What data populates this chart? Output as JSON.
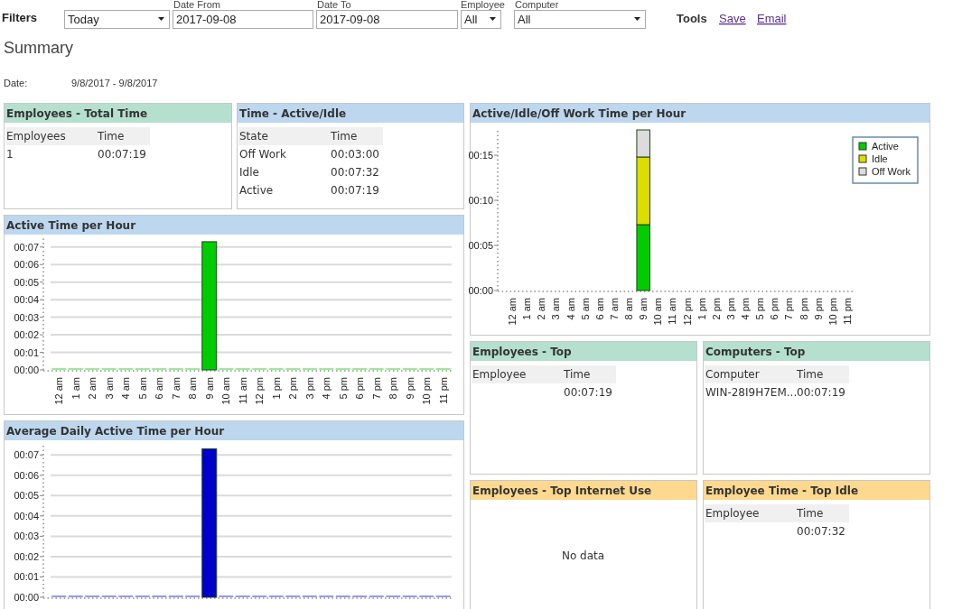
{
  "chart_data": [
    {
      "type": "other",
      "annotations": [
        "Date From",
        "Date To",
        "Employee",
        "Computer",
        "Filters",
        "Today",
        "2017-09-08",
        "2017-09-08",
        "All",
        "All",
        "Tools",
        "Save",
        "Email"
      ]
    },
    {
      "type": "other",
      "title": "Summary",
      "annotations": [
        "Date:",
        "9/8/2017 - 9/8/2017"
      ]
    },
    {
      "type": "other",
      "title": "Employees - Total Time",
      "annotations": [
        "Employees",
        "Time",
        "1",
        "00:07:19"
      ]
    },
    {
      "type": "other",
      "title": "Time - Active/Idle",
      "annotations": [
        "State",
        "Time",
        "Off Work",
        "00:03:00",
        "Idle",
        "00:07:32",
        "Active",
        "00:07:19"
      ]
    },
    {
      "type": "bar",
      "title": "Active/Idle/Off Work Time per Hour",
      "stacked": true,
      "legend": "top right",
      "categories": [
        "12 am",
        "1 am",
        "2 am",
        "3 am",
        "4 am",
        "5 am",
        "6 am",
        "7 am",
        "8 am",
        "9 am",
        "10 am",
        "11 am",
        "12 pm",
        "1 pm",
        "2 pm",
        "3 pm",
        "4 pm",
        "5 pm",
        "6 pm",
        "7 pm",
        "8 pm",
        "9 pm",
        "10 pm",
        "11 pm"
      ],
      "series": [
        {
          "name": "Active",
          "color": "#00cc00",
          "values": [
            0,
            0,
            0,
            0,
            0,
            0,
            0,
            0,
            0,
            7.3,
            0,
            0,
            0,
            0,
            0,
            0,
            0,
            0,
            0,
            0,
            0,
            0,
            0,
            0
          ]
        },
        {
          "name": "Idle",
          "color": "#dddd00",
          "values": [
            0,
            0,
            0,
            0,
            0,
            0,
            0,
            0,
            0,
            7.5,
            0,
            0,
            0,
            0,
            0,
            0,
            0,
            0,
            0,
            0,
            0,
            0,
            0,
            0
          ]
        },
        {
          "name": "Off Work",
          "color": "#dcdcdc",
          "values": [
            0,
            0,
            0,
            0,
            0,
            0,
            0,
            0,
            0,
            3,
            0,
            0,
            0,
            0,
            0,
            0,
            0,
            0,
            0,
            0,
            0,
            0,
            0,
            0
          ]
        }
      ],
      "ylim": [
        0,
        18
      ],
      "yticks": [
        {
          "value": 0,
          "label": "00:00"
        },
        {
          "value": 5,
          "label": "00:05"
        },
        {
          "value": 10,
          "label": "00:10"
        },
        {
          "value": 15,
          "label": "00:15"
        }
      ]
    },
    {
      "type": "bar",
      "title": "Active Time per Hour",
      "grid": "y",
      "color": "#00cc00",
      "categories": [
        "12 am",
        "1 am",
        "2 am",
        "3 am",
        "4 am",
        "5 am",
        "6 am",
        "7 am",
        "8 am",
        "9 am",
        "10 am",
        "11 am",
        "12 pm",
        "1 pm",
        "2 pm",
        "3 pm",
        "4 pm",
        "5 pm",
        "6 pm",
        "7 pm",
        "8 pm",
        "9 pm",
        "10 pm",
        "11 pm"
      ],
      "values": [
        0,
        0,
        0,
        0,
        0,
        0,
        0,
        0,
        0,
        7.3,
        0,
        0,
        0,
        0,
        0,
        0,
        0,
        0,
        0,
        0,
        0,
        0,
        0,
        0
      ],
      "ylim": [
        0,
        7.5
      ],
      "yticks": [
        {
          "value": 0,
          "label": "00:00"
        },
        {
          "value": 1,
          "label": "00:01"
        },
        {
          "value": 2,
          "label": "00:02"
        },
        {
          "value": 3,
          "label": "00:03"
        },
        {
          "value": 4,
          "label": "00:04"
        },
        {
          "value": 5,
          "label": "00:05"
        },
        {
          "value": 6,
          "label": "00:06"
        },
        {
          "value": 7,
          "label": "00:07"
        }
      ]
    },
    {
      "type": "other",
      "title": "Employees - Top",
      "annotations": [
        "Employee",
        "Time",
        null,
        "00:07:19"
      ]
    },
    {
      "type": "other",
      "title": "Computers - Top",
      "annotations": [
        "Computer",
        "Time",
        "WIN-28I9H7EM...",
        "00:07:19"
      ]
    },
    {
      "type": "bar",
      "title": "Average Daily Active Time per Hour",
      "grid": "y",
      "color": "#0000cc",
      "categories": [
        null,
        null,
        null,
        null,
        null,
        null,
        null,
        null,
        null,
        null,
        null,
        null,
        null,
        null,
        null,
        null,
        null,
        null,
        null,
        null,
        null,
        null,
        null,
        null
      ],
      "values": [
        0,
        0,
        0,
        0,
        0,
        0,
        0,
        0,
        0,
        7.3,
        0,
        0,
        0,
        0,
        0,
        0,
        0,
        0,
        0,
        0,
        0,
        0,
        0,
        0
      ],
      "ylim": [
        0,
        7.5
      ],
      "yticks": [
        {
          "value": 0,
          "label": "00:00"
        },
        {
          "value": 1,
          "label": "00:01"
        },
        {
          "value": 2,
          "label": "00:02"
        },
        {
          "value": 3,
          "label": "00:03"
        },
        {
          "value": 4,
          "label": "00:04"
        },
        {
          "value": 5,
          "label": "00:05"
        },
        {
          "value": 6,
          "label": "00:06"
        },
        {
          "value": 7,
          "label": "00:07"
        }
      ]
    },
    {
      "type": "other",
      "title": "Employees - Top Internet Use",
      "annotations": [
        "No data"
      ]
    },
    {
      "type": "other",
      "title": "Employee Time - Top Idle",
      "annotations": [
        "Employee",
        "Time",
        null,
        "00:07:32"
      ]
    }
  ]
}
